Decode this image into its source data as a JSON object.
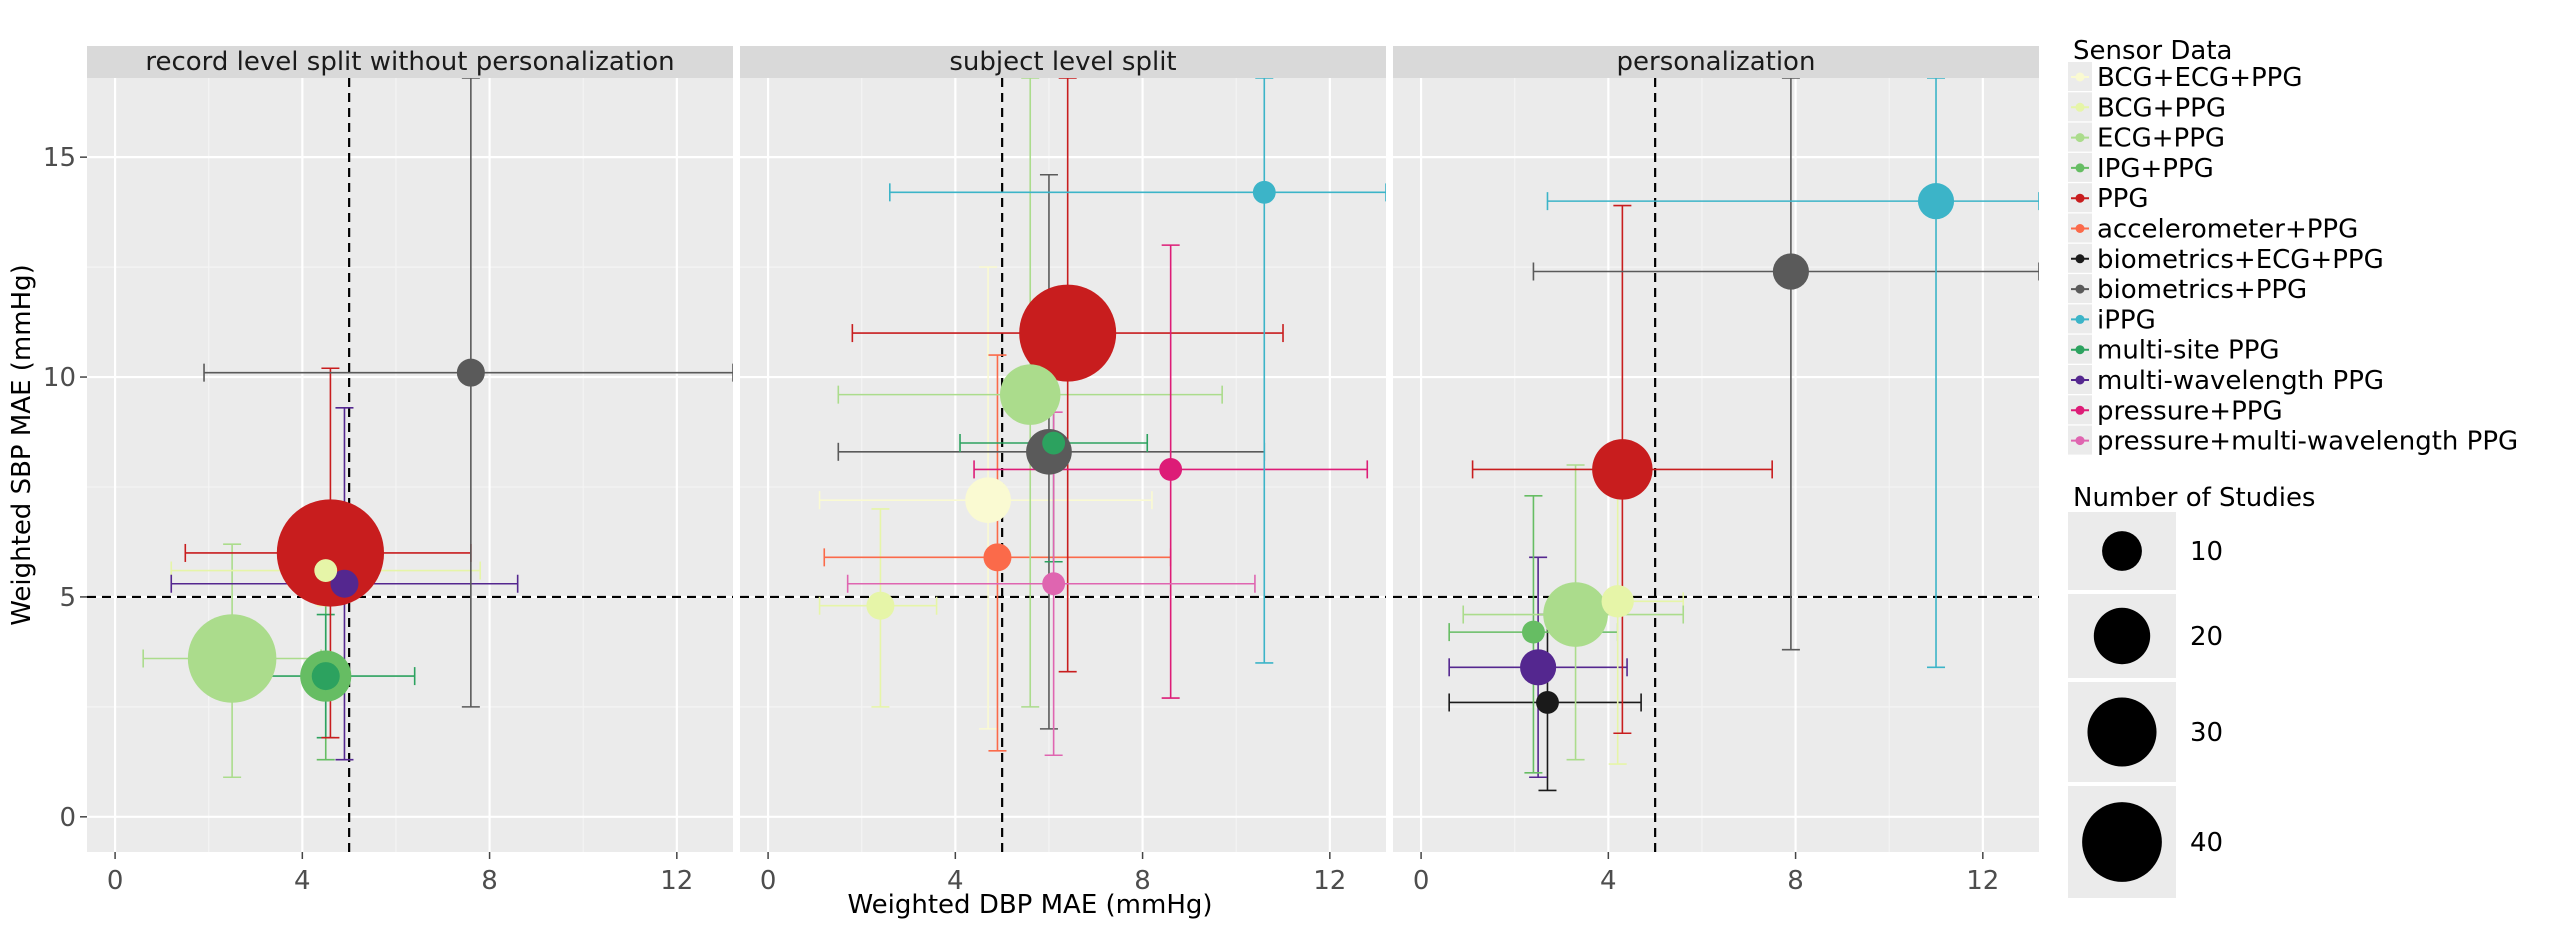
{
  "chart_data": {
    "type": "scatter",
    "xlabel": "Weighted DBP MAE (mmHg)",
    "ylabel": "Weighted SBP MAE (mmHg)",
    "xlim": [
      -0.6,
      13.2
    ],
    "ylim": [
      -0.8,
      16.8
    ],
    "xticks": [
      "0",
      "4",
      "8",
      "12"
    ],
    "yticks": [
      "0",
      "5",
      "10",
      "15"
    ],
    "reference_lines": {
      "x": 5,
      "y": 5
    },
    "grid": true,
    "legend_position": "right",
    "legend": {
      "color_title": "Sensor Data",
      "size_title": "Number of Studies",
      "size_entries": [
        {
          "label": "10",
          "value": 10
        },
        {
          "label": "20",
          "value": 20
        },
        {
          "label": "30",
          "value": 30
        },
        {
          "label": "40",
          "value": 40
        }
      ],
      "categories": [
        {
          "name": "BCG+ECG+PPG",
          "color": "#fafad2"
        },
        {
          "name": "BCG+PPG",
          "color": "#e6f5a8"
        },
        {
          "name": "ECG+PPG",
          "color": "#abdc8c"
        },
        {
          "name": "IPG+PPG",
          "color": "#66bd63"
        },
        {
          "name": "PPG",
          "color": "#c81d1e"
        },
        {
          "name": "accelerometer+PPG",
          "color": "#fb6a4a"
        },
        {
          "name": "biometrics+ECG+PPG",
          "color": "#1a1a1a"
        },
        {
          "name": "biometrics+PPG",
          "color": "#5a5a5a"
        },
        {
          "name": "iPPG",
          "color": "#3cb4c8"
        },
        {
          "name": "multi-site PPG",
          "color": "#2ca25f"
        },
        {
          "name": "multi-wavelength PPG",
          "color": "#54278f"
        },
        {
          "name": "pressure+PPG",
          "color": "#dd1c77"
        },
        {
          "name": "pressure+multi-wavelength PPG",
          "color": "#df65b0"
        }
      ]
    },
    "panels": [
      {
        "title": "record level split without personalization",
        "points": [
          {
            "sensor": "ECG+PPG",
            "x": 2.5,
            "y": 3.6,
            "n": 30,
            "xerr": [
              0.6,
              4.4
            ],
            "yerr": [
              0.9,
              6.2
            ]
          },
          {
            "sensor": "IPG+PPG",
            "x": 4.5,
            "y": 3.2,
            "n": 10,
            "xerr": [
              4.3,
              4.7
            ],
            "yerr": [
              1.3,
              5.2
            ]
          },
          {
            "sensor": "multi-site PPG",
            "x": 4.5,
            "y": 3.2,
            "n": 3,
            "xerr": [
              2.1,
              6.4
            ],
            "yerr": [
              1.8,
              4.6
            ]
          },
          {
            "sensor": "PPG",
            "x": 4.6,
            "y": 6.0,
            "n": 44,
            "xerr": [
              1.5,
              7.6
            ],
            "yerr": [
              1.8,
              10.2
            ]
          },
          {
            "sensor": "BCG+PPG",
            "x": 4.5,
            "y": 5.6,
            "n": 2,
            "xerr": [
              1.2,
              7.8
            ],
            "yerr": [
              4.8,
              6.4
            ]
          },
          {
            "sensor": "multi-wavelength PPG",
            "x": 4.9,
            "y": 5.3,
            "n": 3,
            "xerr": [
              1.2,
              8.6
            ],
            "yerr": [
              1.3,
              9.3
            ]
          },
          {
            "sensor": "biometrics+PPG",
            "x": 7.6,
            "y": 10.1,
            "n": 3,
            "xerr": [
              1.9,
              13.2
            ],
            "yerr": [
              2.5,
              16.8
            ]
          }
        ]
      },
      {
        "title": "subject level split",
        "points": [
          {
            "sensor": "BCG+PPG",
            "x": 2.4,
            "y": 4.8,
            "n": 3,
            "xerr": [
              1.1,
              3.6
            ],
            "yerr": [
              2.5,
              7.0
            ]
          },
          {
            "sensor": "BCG+ECG+PPG",
            "x": 4.7,
            "y": 7.2,
            "n": 8,
            "xerr": [
              1.1,
              8.2
            ],
            "yerr": [
              2.0,
              12.5
            ]
          },
          {
            "sensor": "accelerometer+PPG",
            "x": 4.9,
            "y": 5.9,
            "n": 3,
            "xerr": [
              1.2,
              8.6
            ],
            "yerr": [
              1.5,
              10.5
            ]
          },
          {
            "sensor": "ECG+PPG",
            "x": 5.6,
            "y": 9.6,
            "n": 14,
            "xerr": [
              1.5,
              9.7
            ],
            "yerr": [
              2.5,
              16.8
            ]
          },
          {
            "sensor": "PPG",
            "x": 6.4,
            "y": 11.0,
            "n": 36,
            "xerr": [
              1.8,
              11.0
            ],
            "yerr": [
              3.3,
              16.8
            ]
          },
          {
            "sensor": "biometrics+PPG",
            "x": 6.0,
            "y": 8.3,
            "n": 8,
            "xerr": [
              1.5,
              10.6
            ],
            "yerr": [
              2.0,
              14.6
            ]
          },
          {
            "sensor": "multi-site PPG",
            "x": 6.1,
            "y": 8.5,
            "n": 2,
            "xerr": [
              4.1,
              8.1
            ],
            "yerr": [
              5.8,
              11.2
            ]
          },
          {
            "sensor": "pressure+PPG",
            "x": 8.6,
            "y": 7.9,
            "n": 2,
            "xerr": [
              4.4,
              12.8
            ],
            "yerr": [
              2.7,
              13.0
            ]
          },
          {
            "sensor": "pressure+multi-wavelength PPG",
            "x": 6.1,
            "y": 5.3,
            "n": 2,
            "xerr": [
              1.7,
              10.4
            ],
            "yerr": [
              1.4,
              9.2
            ]
          },
          {
            "sensor": "iPPG",
            "x": 10.6,
            "y": 14.2,
            "n": 2,
            "xerr": [
              2.6,
              13.2
            ],
            "yerr": [
              3.5,
              16.8
            ]
          }
        ]
      },
      {
        "title": "personalization",
        "points": [
          {
            "sensor": "biometrics+ECG+PPG",
            "x": 2.7,
            "y": 2.6,
            "n": 2,
            "xerr": [
              0.6,
              4.7
            ],
            "yerr": [
              0.6,
              4.6
            ]
          },
          {
            "sensor": "multi-wavelength PPG",
            "x": 2.5,
            "y": 3.4,
            "n": 5,
            "xerr": [
              0.6,
              4.4
            ],
            "yerr": [
              0.9,
              5.9
            ]
          },
          {
            "sensor": "IPG+PPG",
            "x": 2.4,
            "y": 4.2,
            "n": 2,
            "xerr": [
              0.6,
              4.2
            ],
            "yerr": [
              1.0,
              7.3
            ]
          },
          {
            "sensor": "BCG+PPG",
            "x": 4.2,
            "y": 4.9,
            "n": 4,
            "xerr": [
              2.8,
              5.6
            ],
            "yerr": [
              1.2,
              8.0
            ]
          },
          {
            "sensor": "ECG+PPG",
            "x": 3.3,
            "y": 4.6,
            "n": 16,
            "xerr": [
              0.9,
              5.6
            ],
            "yerr": [
              1.3,
              8.0
            ]
          },
          {
            "sensor": "PPG",
            "x": 4.3,
            "y": 7.9,
            "n": 14,
            "xerr": [
              1.1,
              7.5
            ],
            "yerr": [
              1.9,
              13.9
            ]
          },
          {
            "sensor": "biometrics+PPG",
            "x": 7.9,
            "y": 12.4,
            "n": 5,
            "xerr": [
              2.4,
              13.2
            ],
            "yerr": [
              3.8,
              16.8
            ]
          },
          {
            "sensor": "iPPG",
            "x": 11.0,
            "y": 14.0,
            "n": 5,
            "xerr": [
              2.7,
              13.2
            ],
            "yerr": [
              3.4,
              16.8
            ]
          }
        ]
      }
    ]
  }
}
